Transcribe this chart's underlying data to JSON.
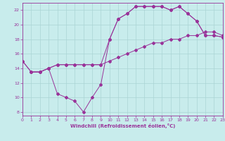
{
  "xlabel": "Windchill (Refroidissement éolien,°C)",
  "background_color": "#c8ecec",
  "grid_color": "#aad4d4",
  "line_color": "#993399",
  "xlim": [
    0,
    23
  ],
  "ylim": [
    7.5,
    23.0
  ],
  "xticks": [
    0,
    1,
    2,
    3,
    4,
    5,
    6,
    7,
    8,
    9,
    10,
    11,
    12,
    13,
    14,
    15,
    16,
    17,
    18,
    19,
    20,
    21,
    22,
    23
  ],
  "yticks": [
    8,
    10,
    12,
    14,
    16,
    18,
    20,
    22
  ],
  "line1_x": [
    0,
    1,
    2,
    3,
    4,
    5,
    6,
    7,
    8,
    9,
    10,
    11,
    12,
    13,
    14,
    15,
    16,
    17,
    18,
    19,
    20,
    21,
    22,
    23
  ],
  "line1_y": [
    15.0,
    13.5,
    13.5,
    14.0,
    14.5,
    14.5,
    14.5,
    14.5,
    14.5,
    14.5,
    15.0,
    15.5,
    16.0,
    16.5,
    17.0,
    17.5,
    17.5,
    18.0,
    18.0,
    18.5,
    18.5,
    19.0,
    19.0,
    18.5
  ],
  "line2_x": [
    0,
    1,
    2,
    3,
    4,
    5,
    6,
    7,
    8,
    9,
    10,
    11,
    12,
    13,
    14,
    15,
    16,
    17,
    18,
    19,
    20,
    21,
    22,
    23
  ],
  "line2_y": [
    15.0,
    13.5,
    13.5,
    14.0,
    14.5,
    14.5,
    14.5,
    14.5,
    14.5,
    14.5,
    18.0,
    20.8,
    21.5,
    22.5,
    22.5,
    22.5,
    22.5,
    22.0,
    22.5,
    21.5,
    20.5,
    18.5,
    18.5,
    18.3
  ],
  "line3_x": [
    1,
    2,
    3,
    4,
    5,
    6,
    7,
    8,
    9,
    10,
    11,
    12,
    13,
    14,
    15,
    16,
    17,
    18,
    19,
    20,
    21,
    22,
    23
  ],
  "line3_y": [
    13.5,
    13.5,
    14.0,
    10.5,
    10.0,
    9.5,
    8.0,
    10.0,
    11.8,
    18.0,
    20.8,
    21.5,
    22.5,
    22.5,
    22.5,
    22.5,
    22.0,
    22.5,
    21.5,
    20.5,
    18.5,
    18.5,
    18.3
  ]
}
